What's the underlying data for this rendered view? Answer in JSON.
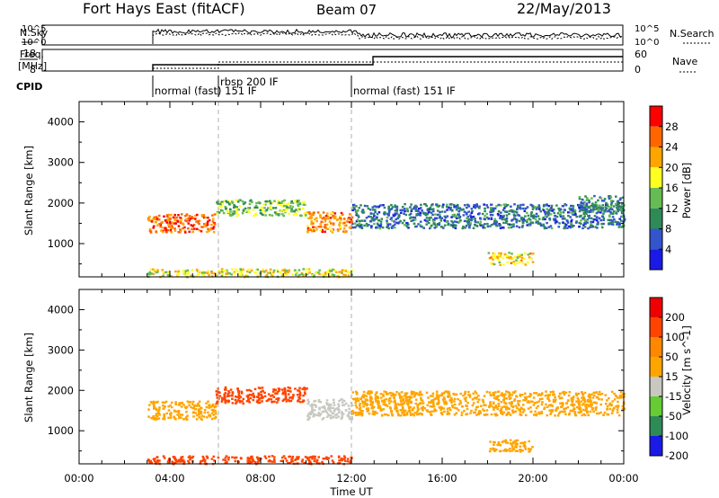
{
  "header": {
    "title_left": "Fort Hays East (fitACF)",
    "title_center": "Beam 07",
    "title_right": "22/May/2013"
  },
  "strip_panels": {
    "nsky": {
      "label": "N.Sky",
      "tick_top": "10^5",
      "tick_bottom": "10^0",
      "right_label": "N.Search",
      "right_tick_top": "10^5",
      "right_tick_bottom": "10^0"
    },
    "freq": {
      "label_line1": "Freq.",
      "label_line2": "[MHz]",
      "tick_top": "18",
      "tick_bottom": "8",
      "right_label": "Nave",
      "right_tick_top": "60",
      "right_tick_bottom": "0"
    },
    "cpid": {
      "label": "CPID",
      "segments": [
        {
          "text": "normal (fast) 151 IF",
          "start_hour": 3.0
        },
        {
          "text": "rbsp 200 IF",
          "start_hour": 6.0
        },
        {
          "text": "normal (fast) 151 IF",
          "start_hour": 12.0
        }
      ]
    }
  },
  "chart_data": [
    {
      "type": "heatmap",
      "name": "power",
      "xlabel": "",
      "ylabel": "Slant Range [km]",
      "xlim": [
        0,
        24
      ],
      "ylim": [
        180,
        4500
      ],
      "yticks": [
        1000,
        2000,
        3000,
        4000
      ],
      "colorbar": {
        "label": "Power [dB]",
        "ticks": [
          4,
          8,
          12,
          16,
          20,
          24,
          28
        ],
        "colors": [
          "#1a1ae6",
          "#3355cc",
          "#2e8b57",
          "#66bb55",
          "#ffff22",
          "#ffa500",
          "#ff6600",
          "#ff0000"
        ]
      },
      "echo_regions": [
        {
          "hour_start": 3.0,
          "hour_end": 6.0,
          "range_start": 1300,
          "range_end": 1750,
          "power_db": 26
        },
        {
          "hour_start": 6.0,
          "hour_end": 10.0,
          "range_start": 1700,
          "range_end": 2100,
          "power_db": 14
        },
        {
          "hour_start": 10.0,
          "hour_end": 12.0,
          "range_start": 1300,
          "range_end": 1800,
          "power_db": 24
        },
        {
          "hour_start": 3.0,
          "hour_end": 12.0,
          "range_start": 200,
          "range_end": 400,
          "power_db": 18
        },
        {
          "hour_start": 12.0,
          "hour_end": 24.0,
          "range_start": 1400,
          "range_end": 2000,
          "power_db": 8
        },
        {
          "hour_start": 18.0,
          "hour_end": 20.0,
          "range_start": 500,
          "range_end": 800,
          "power_db": 20
        },
        {
          "hour_start": 22.0,
          "hour_end": 24.0,
          "range_start": 1800,
          "range_end": 2200,
          "power_db": 10
        }
      ]
    },
    {
      "type": "heatmap",
      "name": "velocity",
      "xlabel": "Time UT",
      "ylabel": "Slant Range [km]",
      "xlim": [
        0,
        24
      ],
      "ylim": [
        180,
        4500
      ],
      "xticks": [
        "00:00",
        "04:00",
        "08:00",
        "12:00",
        "16:00",
        "20:00",
        "00:00"
      ],
      "yticks": [
        1000,
        2000,
        3000,
        4000
      ],
      "colorbar": {
        "label": "Velocity [m s^-1]",
        "ticks": [
          200,
          100,
          50,
          15,
          -15,
          -50,
          -100,
          -200
        ],
        "colors": [
          "#1a1ae6",
          "#2e8b57",
          "#66cc33",
          "#c8c8c0",
          "#ffa500",
          "#ff8800",
          "#ff4400",
          "#ee0000"
        ]
      },
      "echo_regions": [
        {
          "hour_start": 3.0,
          "hour_end": 6.0,
          "range_start": 1300,
          "range_end": 1750,
          "velocity": 0
        },
        {
          "hour_start": 6.0,
          "hour_end": 10.0,
          "range_start": 1700,
          "range_end": 2100,
          "velocity": -60
        },
        {
          "hour_start": 10.0,
          "hour_end": 12.0,
          "range_start": 1300,
          "range_end": 1800,
          "velocity": 40
        },
        {
          "hour_start": 3.0,
          "hour_end": 12.0,
          "range_start": 200,
          "range_end": 400,
          "velocity": -80
        },
        {
          "hour_start": 12.0,
          "hour_end": 24.0,
          "range_start": 1400,
          "range_end": 2000,
          "velocity": 0
        },
        {
          "hour_start": 18.0,
          "hour_end": 20.0,
          "range_start": 500,
          "range_end": 800,
          "velocity": 0
        }
      ]
    }
  ]
}
